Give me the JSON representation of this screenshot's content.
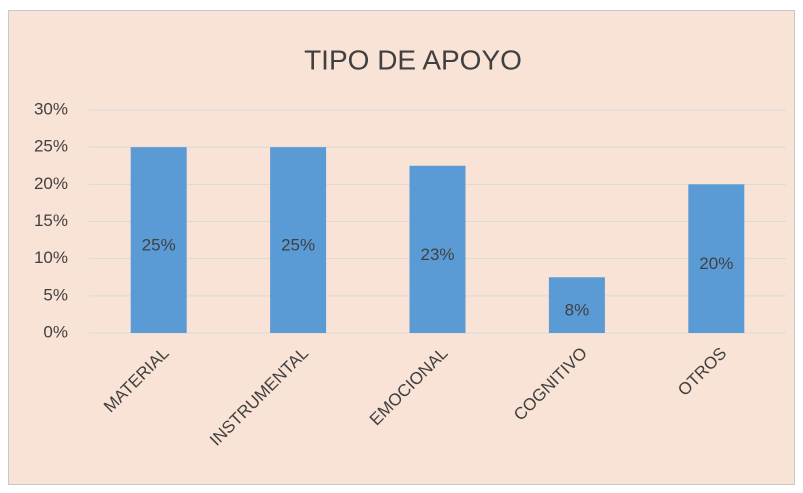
{
  "chart_data": {
    "type": "bar",
    "title": "TIPO DE APOYO",
    "categories": [
      "MATERIAL",
      "INSTRUMENTAL",
      "EMOCIONAL",
      "COGNITIVO",
      "OTROS"
    ],
    "values": [
      25,
      25,
      22.5,
      7.5,
      20
    ],
    "value_labels": [
      "25%",
      "25%",
      "23%",
      "8%",
      "20%"
    ],
    "color": "#5b9bd5",
    "ylim": [
      0,
      30
    ],
    "yticks": [
      {
        "value": 0,
        "label": "0%"
      },
      {
        "value": 5,
        "label": "5%"
      },
      {
        "value": 10,
        "label": "10%"
      },
      {
        "value": 15,
        "label": "15%"
      },
      {
        "value": 20,
        "label": "20%"
      },
      {
        "value": 25,
        "label": "25%"
      },
      {
        "value": 30,
        "label": "30%"
      }
    ],
    "grid": true
  }
}
